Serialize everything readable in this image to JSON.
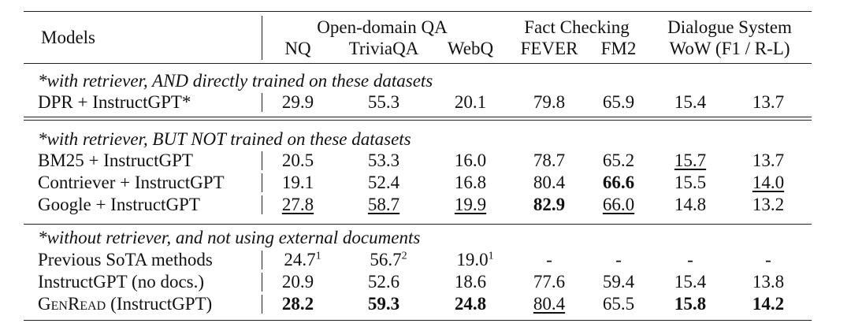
{
  "header": {
    "models": "Models",
    "groups": [
      {
        "label": "Open-domain QA",
        "columns": [
          "NQ",
          "TriviaQA",
          "WebQ"
        ]
      },
      {
        "label": "Fact Checking",
        "columns": [
          "FEVER",
          "FM2"
        ]
      },
      {
        "label": "Dialogue System",
        "columns": [
          "WoW (F1 / R-L)"
        ]
      }
    ]
  },
  "sections": [
    {
      "title": "*with retriever, AND directly trained on these datasets",
      "rows": [
        {
          "model": [
            "DPR + InstructGPT*"
          ],
          "cells": [
            {
              "text": "29.9"
            },
            {
              "text": "55.3"
            },
            {
              "text": "20.1"
            },
            {
              "text": "79.8"
            },
            {
              "text": "65.9"
            },
            {
              "text": "15.4"
            },
            {
              "text": "13.7"
            }
          ]
        }
      ]
    },
    {
      "title": "*with retriever, BUT NOT trained on these datasets",
      "rows": [
        {
          "model": [
            "BM25 + InstructGPT"
          ],
          "cells": [
            {
              "text": "20.5"
            },
            {
              "text": "53.3"
            },
            {
              "text": "16.0"
            },
            {
              "text": "78.7"
            },
            {
              "text": "65.2"
            },
            {
              "text": "15.7"
            },
            {
              "text": "13.7"
            }
          ],
          "underline": [
            5
          ]
        },
        {
          "model": [
            "Contriever + InstructGPT"
          ],
          "cells": [
            {
              "text": "19.1"
            },
            {
              "text": "52.4"
            },
            {
              "text": "16.8"
            },
            {
              "text": "80.4"
            },
            {
              "text": "66.6"
            },
            {
              "text": "15.5"
            },
            {
              "text": "14.0"
            }
          ],
          "bold": [
            4
          ],
          "underline": [
            6
          ]
        },
        {
          "model": [
            "Google + InstructGPT"
          ],
          "cells": [
            {
              "text": "27.8"
            },
            {
              "text": "58.7"
            },
            {
              "text": "19.9"
            },
            {
              "text": "82.9"
            },
            {
              "text": "66.0"
            },
            {
              "text": "14.8"
            },
            {
              "text": "13.2"
            }
          ],
          "bold": [
            3
          ],
          "underline": [
            0,
            1,
            2,
            4
          ]
        }
      ]
    },
    {
      "title": "*without retriever, and not using external documents",
      "rows": [
        {
          "model": [
            "Previous SoTA methods"
          ],
          "cells": [
            {
              "text": "24.7",
              "sup": "1"
            },
            {
              "text": "56.7",
              "sup": "2"
            },
            {
              "text": "19.0",
              "sup": "1"
            },
            {
              "text": "-"
            },
            {
              "text": "-"
            },
            {
              "text": "-"
            },
            {
              "text": "-"
            }
          ]
        },
        {
          "model": [
            "InstructGPT (no docs.)"
          ],
          "cells": [
            {
              "text": "20.9"
            },
            {
              "text": "52.6"
            },
            {
              "text": "18.6"
            },
            {
              "text": "77.6"
            },
            {
              "text": "59.4"
            },
            {
              "text": "15.4"
            },
            {
              "text": "13.8"
            }
          ]
        },
        {
          "model": [
            "GenRead",
            "(InstructGPT)"
          ],
          "smallcaps": true,
          "cells": [
            {
              "text": "28.2"
            },
            {
              "text": "59.3"
            },
            {
              "text": "24.8"
            },
            {
              "text": "80.4"
            },
            {
              "text": "65.5"
            },
            {
              "text": "15.8"
            },
            {
              "text": "14.2"
            }
          ],
          "bold": [
            0,
            1,
            2,
            5,
            6
          ],
          "underline": [
            3
          ]
        }
      ]
    }
  ]
}
